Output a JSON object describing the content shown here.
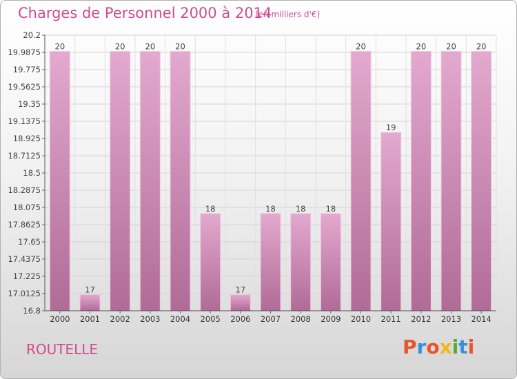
{
  "header": {
    "title": "Charges de Personnel 2000 à 2014",
    "subtitle": "(en milliers d'€)"
  },
  "footer": {
    "commune": "ROUTELLE",
    "logo_text": "Proxiti",
    "logo_colors": [
      "#e8542a",
      "#3a8fd8",
      "#e8542a",
      "#f2b81b",
      "#5aa83a",
      "#3a8fd8",
      "#e8542a"
    ]
  },
  "chart_data": {
    "type": "bar",
    "categories": [
      "2000",
      "2001",
      "2002",
      "2003",
      "2004",
      "2005",
      "2006",
      "2007",
      "2008",
      "2009",
      "2010",
      "2011",
      "2012",
      "2013",
      "2014"
    ],
    "values": [
      20,
      17,
      20,
      20,
      20,
      18,
      17,
      18,
      18,
      18,
      20,
      19,
      20,
      20,
      20
    ],
    "data_labels": [
      "20",
      "17",
      "20",
      "20",
      "20",
      "18",
      "17",
      "18",
      "18",
      "18",
      "20",
      "19",
      "20",
      "20",
      "20"
    ],
    "ylim": [
      16.8,
      20.2
    ],
    "yticks": [
      "16.8",
      "17.0125",
      "17.225",
      "17.4375",
      "17.65",
      "17.8625",
      "18.075",
      "18.2875",
      "18.5",
      "18.7125",
      "18.925",
      "19.1375",
      "19.35",
      "19.5625",
      "19.775",
      "19.9875",
      "20.2"
    ],
    "grid": true,
    "bar_color_top": "#e3a9cf",
    "bar_color_bottom": "#b06b96",
    "bar_edge_color": "#f0c8e0"
  }
}
